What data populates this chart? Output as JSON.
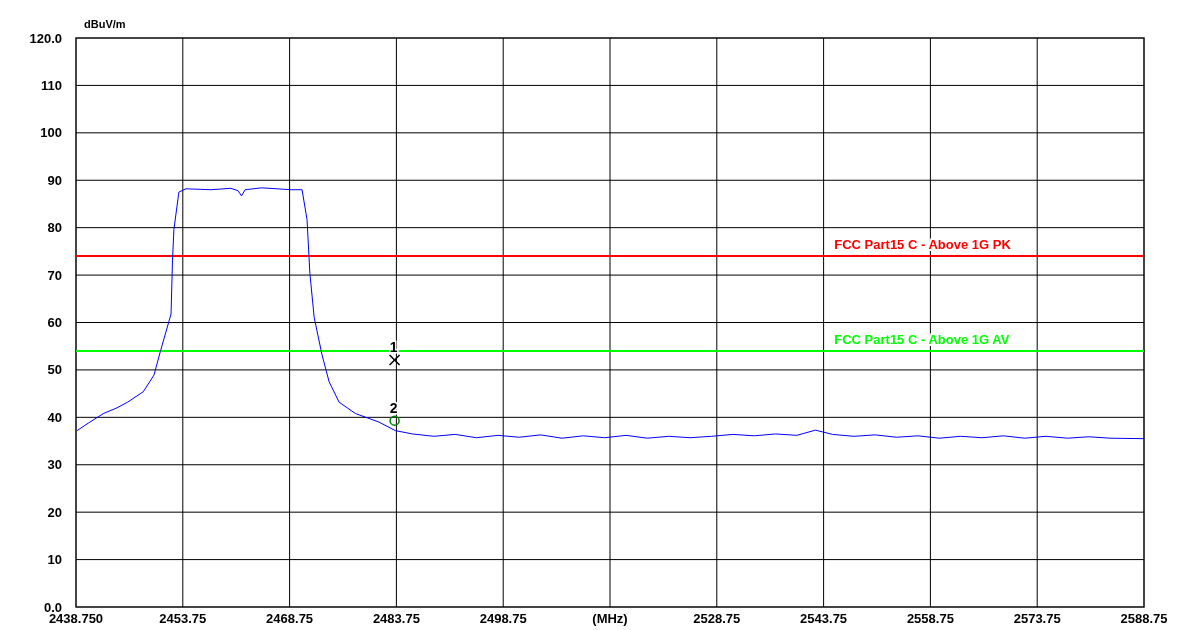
{
  "chart_data": {
    "type": "line",
    "ylabel": "dBuV/m",
    "xlabel": "(MHz)",
    "xlim": [
      2438.75,
      2588.75
    ],
    "xticks": [
      {
        "value": 2438.75,
        "label": "2438.750"
      },
      2453.75,
      2468.75,
      2483.75,
      2498.75,
      {
        "value": 2513.75,
        "label": null
      },
      2528.75,
      2543.75,
      2558.75,
      2573.75,
      2588.75
    ],
    "ylim": [
      0,
      120
    ],
    "yticks": [
      {
        "value": 0,
        "label": "0.0"
      },
      10,
      20,
      30,
      40,
      50,
      60,
      70,
      80,
      90,
      100,
      110,
      {
        "value": 120,
        "label": "120.0"
      }
    ],
    "grid": true,
    "series": [
      {
        "color": "#0000ff",
        "x": [
          2438.9,
          2440.5,
          2442.6,
          2444.5,
          2446.0,
          2448.2,
          2449.7,
          2450.6,
          2452.1,
          2452.3,
          2452.5,
          2453.2,
          2454.2,
          2457.7,
          2460.5,
          2461.5,
          2462.0,
          2462.5,
          2464.8,
          2469.0,
          2470.5,
          2471.2,
          2471.6,
          2472.2,
          2473.3,
          2474.3,
          2475.7,
          2478.0,
          2481.3,
          2483.6,
          2486.0,
          2489.0,
          2492.0,
          2495.0,
          2498.0,
          2501.0,
          2504.0,
          2507.0,
          2510.0,
          2513.0,
          2516.0,
          2519.0,
          2522.0,
          2525.0,
          2528.0,
          2531.0,
          2534.0,
          2537.0,
          2540.0,
          2542.6,
          2545.0,
          2548.0,
          2551.0,
          2554.0,
          2557.0,
          2560.0,
          2563.0,
          2566.0,
          2569.0,
          2572.0,
          2575.0,
          2578.0,
          2581.0,
          2584.0,
          2588.75
        ],
        "values": [
          37.2,
          38.8,
          40.8,
          42.0,
          43.2,
          45.4,
          48.9,
          53.9,
          61.8,
          73.0,
          79.6,
          87.5,
          88.2,
          88.0,
          88.3,
          87.8,
          86.7,
          88.0,
          88.4,
          88.0,
          88.0,
          81.7,
          70.3,
          61.1,
          53.2,
          47.5,
          43.2,
          40.8,
          39.0,
          37.2,
          36.5,
          36.0,
          36.4,
          35.7,
          36.2,
          35.8,
          36.3,
          35.6,
          36.1,
          35.7,
          36.2,
          35.6,
          36.0,
          35.7,
          36.0,
          36.4,
          36.1,
          36.5,
          36.2,
          37.3,
          36.4,
          36.0,
          36.3,
          35.8,
          36.1,
          35.6,
          36.0,
          35.7,
          36.1,
          35.6,
          36.0,
          35.6,
          35.9,
          35.6,
          35.5
        ]
      }
    ],
    "ref_lines": [
      {
        "axis": "y",
        "value": 74,
        "label": "FCC Part15 C - Above 1G PK",
        "color": "#ff0000"
      },
      {
        "axis": "y",
        "value": 54,
        "label": "FCC Part15 C - Above 1G AV",
        "color": "#00ff00"
      }
    ],
    "annotations": [
      {
        "text": "1",
        "x": 2483.5,
        "y": 52.1
      },
      {
        "text": "2",
        "x": 2483.5,
        "y": 39.3
      }
    ]
  }
}
